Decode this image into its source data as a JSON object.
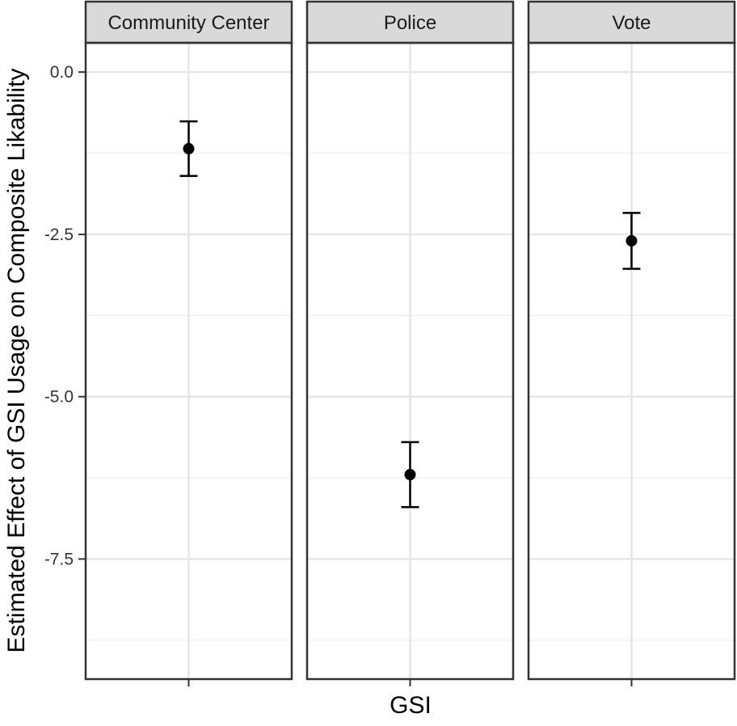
{
  "chart_data": {
    "type": "scatter",
    "subtype": "point-with-errorbars",
    "facets": [
      "Community Center",
      "Police",
      "Vote"
    ],
    "x_category": "GSI",
    "xlabel": "GSI",
    "ylabel": "Estimated Effect of GSI Usage on Composite Likability",
    "ylim": [
      -9.35,
      0.45
    ],
    "yticks": [
      0.0,
      -2.5,
      -5.0,
      -7.5
    ],
    "ytick_labels": [
      "0.0",
      "-2.5",
      "-5.0",
      "-7.5"
    ],
    "ygrid_minor": [
      -1.25,
      -3.75,
      -6.25,
      -8.75
    ],
    "grid": true,
    "series": [
      {
        "facet": "Community Center",
        "x": "GSI",
        "estimate": -1.18,
        "lower": -1.6,
        "upper": -0.76
      },
      {
        "facet": "Police",
        "x": "GSI",
        "estimate": -6.2,
        "lower": -6.7,
        "upper": -5.7
      },
      {
        "facet": "Vote",
        "x": "GSI",
        "estimate": -2.6,
        "lower": -3.03,
        "upper": -2.17
      }
    ]
  }
}
